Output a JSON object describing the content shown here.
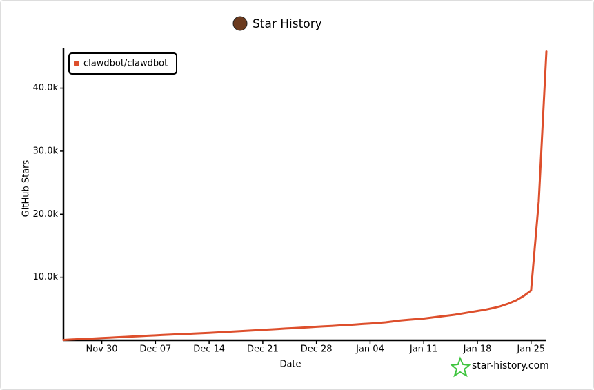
{
  "chart_data": {
    "type": "line",
    "title": "Star History",
    "x_label": "Date",
    "y_label": "GitHub Stars",
    "categories": [
      null,
      null,
      null,
      null,
      null,
      "Nov 30",
      null,
      null,
      null,
      null,
      null,
      null,
      "Dec 07",
      null,
      null,
      null,
      null,
      null,
      null,
      "Dec 14",
      null,
      null,
      null,
      null,
      null,
      null,
      "Dec 21",
      null,
      null,
      null,
      null,
      null,
      null,
      "Dec 28",
      null,
      null,
      null,
      null,
      null,
      null,
      "Jan 04",
      null,
      null,
      null,
      null,
      null,
      null,
      "Jan 11",
      null,
      null,
      null,
      null,
      null,
      null,
      "Jan 18",
      null,
      null,
      null,
      null,
      null,
      null,
      "Jan 25",
      null,
      null
    ],
    "series": [
      {
        "name": "clawdbot/clawdbot",
        "color": "#dd4f2c",
        "values": [
          50,
          120,
          180,
          230,
          290,
          350,
          420,
          480,
          540,
          600,
          660,
          720,
          780,
          840,
          900,
          960,
          1000,
          1060,
          1120,
          1180,
          1250,
          1310,
          1380,
          1450,
          1520,
          1590,
          1660,
          1730,
          1800,
          1870,
          1930,
          2000,
          2070,
          2140,
          2210,
          2280,
          2350,
          2420,
          2500,
          2580,
          2660,
          2750,
          2850,
          3000,
          3150,
          3250,
          3350,
          3450,
          3600,
          3750,
          3900,
          4050,
          4250,
          4450,
          4650,
          4850,
          5100,
          5400,
          5800,
          6300,
          7000,
          7900,
          22000,
          45800
        ]
      }
    ],
    "ylim": [
      0,
      46300
    ],
    "yticks": [
      {
        "value": 10000,
        "label": "10.0k"
      },
      {
        "value": 20000,
        "label": "20.0k"
      },
      {
        "value": 30000,
        "label": "30.0k"
      },
      {
        "value": 40000,
        "label": "40.0k"
      }
    ],
    "legend": "top-left",
    "watermark": "star-history.com"
  }
}
